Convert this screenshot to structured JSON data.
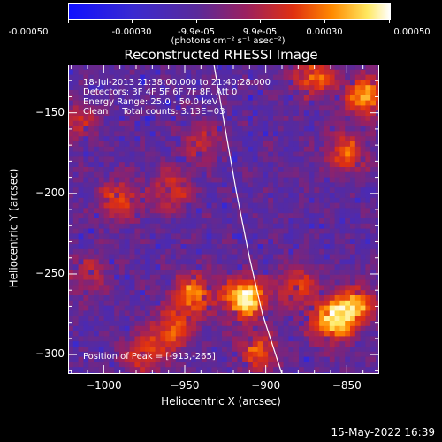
{
  "colorbar": {
    "ticks": [
      "-0.00050",
      "-0.00030",
      "-9.9e-05",
      "9.9e-05",
      "0.00030",
      "0.00050"
    ],
    "unit": "(photons cm⁻² s⁻¹ asec⁻²)"
  },
  "chart_data": {
    "type": "heatmap",
    "title": "Reconstructed RHESSI Image",
    "xlabel": "Heliocentric X (arcsec)",
    "ylabel": "Heliocentric Y (arcsec)",
    "xlim": [
      -1022,
      -830
    ],
    "ylim": [
      -312,
      -120
    ],
    "x_ticks": [
      -1000,
      -950,
      -900,
      -850
    ],
    "y_ticks": [
      -150,
      -200,
      -250,
      -300
    ],
    "x_tick_labels": [
      "−1000",
      "−950",
      "−900",
      "−850"
    ],
    "y_tick_labels": [
      "−150",
      "−200",
      "−250",
      "−300"
    ],
    "color_range": [
      -0.0005,
      0.0005
    ],
    "peak": [
      -913,
      -265
    ],
    "limb_line": [
      [
        -932,
        -120
      ],
      [
        -925,
        -160
      ],
      [
        -918,
        -200
      ],
      [
        -910,
        -240
      ],
      [
        -902,
        -275
      ],
      [
        -890,
        -312
      ]
    ],
    "bright_sources": [
      {
        "x": -913,
        "y": -265,
        "intensity": 1.0
      },
      {
        "x": -945,
        "y": -262,
        "intensity": 0.7
      },
      {
        "x": -958,
        "y": -285,
        "intensity": 0.55
      },
      {
        "x": -975,
        "y": -300,
        "intensity": 0.5
      },
      {
        "x": -905,
        "y": -298,
        "intensity": 0.55
      },
      {
        "x": -860,
        "y": -280,
        "intensity": 0.8
      },
      {
        "x": -845,
        "y": -270,
        "intensity": 0.75
      },
      {
        "x": -838,
        "y": -140,
        "intensity": 0.75
      },
      {
        "x": -850,
        "y": -175,
        "intensity": 0.55
      },
      {
        "x": -870,
        "y": -128,
        "intensity": 0.6
      },
      {
        "x": -990,
        "y": -205,
        "intensity": 0.55
      },
      {
        "x": -958,
        "y": -198,
        "intensity": 0.45
      },
      {
        "x": -940,
        "y": -168,
        "intensity": 0.4
      },
      {
        "x": -880,
        "y": -258,
        "intensity": 0.5
      },
      {
        "x": -1015,
        "y": -155,
        "intensity": 0.35
      },
      {
        "x": -1010,
        "y": -250,
        "intensity": 0.35
      }
    ]
  },
  "annotations": {
    "line1": "18-Jul-2013 21:38:00.000 to 21:40:28.000",
    "line2": "Detectors: 3F 4F 5F 6F 7F 8F, Att 0",
    "line3": "Energy Range: 25.0 - 50.0 keV",
    "line4": "Clean     Total counts: 3.13E+03",
    "peak": "Position of Peak = [-913,-265]"
  },
  "timestamp": "15-May-2022 16:39"
}
